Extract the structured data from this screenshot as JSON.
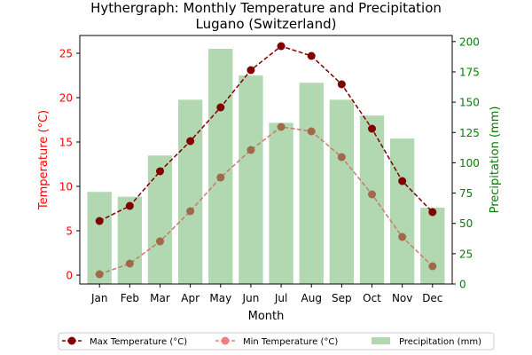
{
  "chart_data": {
    "type": "bar",
    "title_line1": "Hythergraph: Monthly Temperature and Precipitation",
    "title_line2": "Lugano (Switzerland)",
    "xlabel": "Month",
    "ylabel_left": "Temperature (°C)",
    "ylabel_right": "Precipitation (mm)",
    "categories": [
      "Jan",
      "Feb",
      "Mar",
      "Apr",
      "May",
      "Jun",
      "Jul",
      "Aug",
      "Sep",
      "Oct",
      "Nov",
      "Dec"
    ],
    "ylim_left": [
      -1,
      27
    ],
    "ylim_right": [
      0,
      205
    ],
    "yticks_left": [
      0,
      5,
      10,
      15,
      20,
      25
    ],
    "yticks_right": [
      0,
      25,
      50,
      75,
      100,
      125,
      150,
      175,
      200
    ],
    "legend_position": "bottom-center",
    "colors": {
      "left_axis": "#ff0000",
      "right_axis": "#008000",
      "bar": "#b2d8b2",
      "max_line": "#800000",
      "min_line_marker": "#a0694a",
      "min_line_stroke": "#c97b6d",
      "min_legend": "#f08080"
    },
    "series": [
      {
        "name": "Max Temperature (°C)",
        "kind": "line",
        "axis": "left",
        "values": [
          6.1,
          7.8,
          11.7,
          15.1,
          18.9,
          23.1,
          25.8,
          24.7,
          21.5,
          16.5,
          10.6,
          7.1
        ]
      },
      {
        "name": "Min Temperature (°C)",
        "kind": "line",
        "axis": "left",
        "values": [
          0.1,
          1.3,
          3.8,
          7.2,
          11.0,
          14.1,
          16.7,
          16.2,
          13.3,
          9.1,
          4.3,
          1.0
        ]
      },
      {
        "name": "Precipitation (mm)",
        "kind": "bar",
        "axis": "right",
        "values": [
          76,
          72,
          106,
          152,
          194,
          172,
          133,
          166,
          152,
          139,
          120,
          63
        ]
      }
    ]
  }
}
